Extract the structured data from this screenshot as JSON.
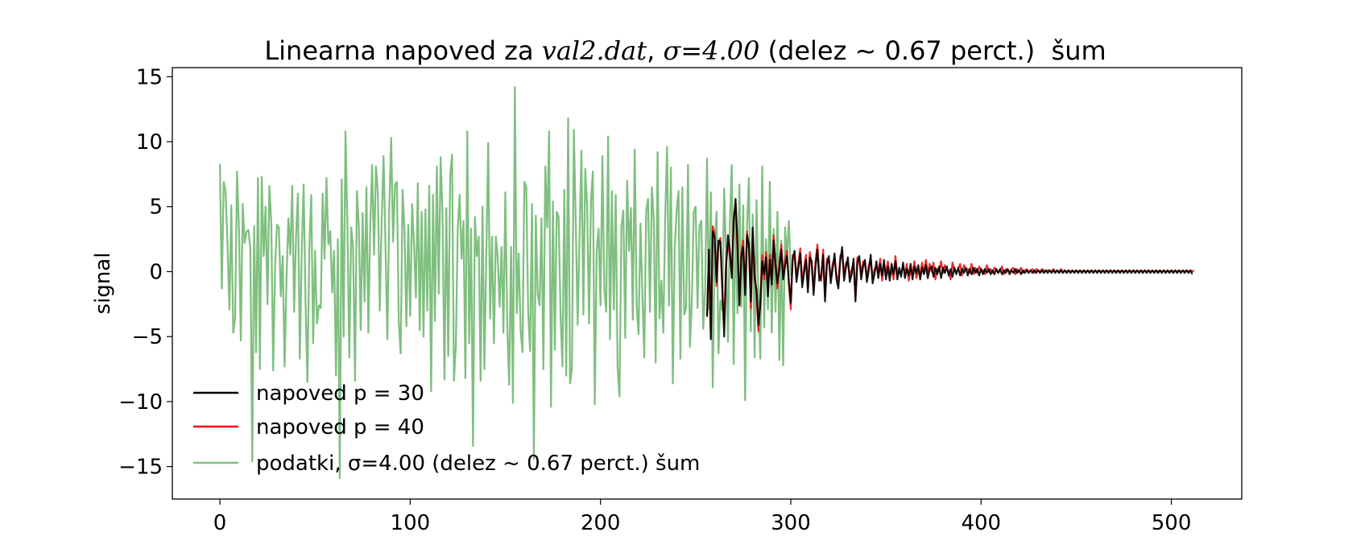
{
  "chart_data": {
    "type": "line",
    "title": {
      "prefix": "Linearna napoved za ",
      "file": "val2.dat",
      "sep": ", ",
      "sigma": "σ=4.00",
      "suffix": " (delez ~ 0.67 perct.)  šum"
    },
    "xlabel": "",
    "ylabel": "signal",
    "xlim": [
      -25,
      537
    ],
    "ylim": [
      -17.5,
      15.7
    ],
    "x_ticks": [
      0,
      100,
      200,
      300,
      400,
      500
    ],
    "y_ticks": [
      15,
      10,
      5,
      0,
      -5,
      -10,
      -15
    ],
    "y_tick_labels": [
      "15",
      "10",
      "5",
      "0",
      "−5",
      "−10",
      "−15"
    ],
    "legend_position": "lower-left",
    "series": [
      {
        "name": "napoved p = 30",
        "color": "#000000",
        "x_start": 256,
        "values": [
          -3.4,
          1.7,
          -5.2,
          3.1,
          2.6,
          -0.8,
          2.4,
          2.3,
          -1.1,
          -5.0,
          0.3,
          2.8,
          1.6,
          -0.5,
          3.8,
          5.6,
          2.2,
          -2.6,
          1.1,
          1.9,
          -1.8,
          2.8,
          2.1,
          -2.3,
          3.4,
          -0.5,
          -1.4,
          -4.1,
          -2.6,
          0.8,
          -0.2,
          1.1,
          -1.9,
          0.9,
          -1.0,
          2.4,
          0.6,
          -0.9,
          0.2,
          1.7,
          -0.6,
          0.4,
          1.2,
          -0.7,
          -2.4,
          0.9,
          1.6,
          -0.8,
          0.3,
          1.4,
          -1.2,
          -0.1,
          0.9,
          -1.6,
          1.1,
          0.8,
          -1.8,
          0.4,
          1.7,
          -0.7,
          -0.3,
          1.3,
          -2.3,
          0.6,
          1.2,
          -0.9,
          0.2,
          1.4,
          -0.6,
          -1.3,
          0.8,
          1.9,
          -0.7,
          0.3,
          1.1,
          -0.8,
          -0.2,
          1.0,
          -2.3,
          0.7,
          1.2,
          -0.6,
          0.4,
          0.9,
          -0.8,
          0.1,
          1.3,
          -0.9,
          -0.2,
          0.8,
          -0.5,
          0.6,
          -0.3,
          0.9,
          -0.6,
          0.4,
          -0.7,
          0.6,
          -0.2,
          0.8,
          -0.6,
          0.3,
          -0.4,
          0.7,
          -0.5,
          0.2,
          -0.3,
          0.6,
          -0.6,
          0.4,
          -0.1,
          0.5,
          -0.6,
          0.3,
          -0.2,
          0.5,
          -0.5,
          0.2,
          0.4,
          -0.4,
          0.3,
          -0.2,
          0.4,
          -0.5,
          0.3,
          -0.1,
          0.4,
          -0.3,
          0.2,
          -0.4,
          0.3,
          -0.2,
          0.3,
          -0.3,
          0.2,
          -0.1,
          0.3,
          -0.3,
          0.2,
          -0.2,
          0.3,
          -0.1,
          0.2,
          -0.3,
          0.2,
          -0.2,
          0.2,
          -0.1,
          0.2,
          -0.2,
          0.1,
          -0.2,
          0.2,
          -0.1,
          0.2,
          -0.2,
          0.1,
          -0.1,
          0.2,
          -0.2,
          0.1,
          -0.1,
          0.2,
          -0.1,
          0.1,
          -0.2,
          0.1,
          -0.1,
          0.1,
          -0.1,
          0.1,
          -0.1,
          0.1,
          -0.1,
          0.1,
          -0.1,
          0.1,
          -0.1,
          0.1,
          -0.1,
          0.1,
          -0.1,
          0.1,
          -0.1,
          0.1,
          -0.1,
          0.1,
          -0.1,
          0.1,
          -0.1,
          0.1,
          -0.1,
          0.1,
          -0.1,
          0.1,
          -0.1,
          0.1,
          -0.1,
          0.1,
          -0.1,
          0.1,
          -0.1,
          0.1,
          -0.1,
          0.1,
          -0.1,
          0.1,
          -0.1,
          0.1,
          -0.1,
          0.1,
          -0.1,
          0.1,
          -0.1,
          0.1,
          -0.1,
          0.1,
          -0.1,
          0.1,
          -0.1,
          0.1,
          -0.1,
          0.1,
          -0.1,
          0.1,
          -0.1,
          0.1,
          -0.1,
          0.1,
          -0.1,
          0.1,
          -0.1,
          0.1,
          -0.1,
          0.1,
          -0.1,
          0.1,
          -0.1,
          0.1,
          -0.1,
          0.1,
          -0.1,
          0.1,
          -0.1,
          0.1,
          -0.1,
          0.1,
          -0.1,
          0.1,
          -0.1,
          0.1,
          -0.1,
          0.1,
          -0.1,
          0.1,
          -0.2
        ]
      },
      {
        "name": "napoved p = 40",
        "color": "#ee1111",
        "x_start": 256,
        "values": [
          -3.5,
          1.4,
          -5.1,
          3.5,
          2.9,
          -1.1,
          2.0,
          2.6,
          -1.5,
          -4.2,
          0.8,
          2.1,
          1.2,
          -0.1,
          4.2,
          5.3,
          1.6,
          -2.1,
          1.5,
          2.4,
          -1.3,
          3.1,
          1.7,
          -2.8,
          3.0,
          -0.1,
          -1.9,
          -4.6,
          -2.1,
          1.3,
          -0.6,
          1.5,
          -1.4,
          1.3,
          -0.5,
          2.8,
          0.2,
          -1.3,
          0.6,
          2.1,
          -0.2,
          0.9,
          1.6,
          -1.1,
          -2.9,
          1.3,
          1.2,
          -0.4,
          0.7,
          1.8,
          -0.8,
          0.3,
          1.3,
          -1.2,
          1.5,
          0.4,
          -1.4,
          0.8,
          2.1,
          -0.3,
          -0.7,
          1.7,
          -1.9,
          1.0,
          0.8,
          -0.5,
          0.6,
          1.0,
          -0.2,
          -0.9,
          1.2,
          1.5,
          -0.3,
          0.7,
          0.7,
          -0.4,
          0.2,
          0.6,
          -1.9,
          1.1,
          0.8,
          -0.2,
          0.8,
          0.5,
          -0.4,
          0.5,
          0.9,
          -0.5,
          0.2,
          0.4,
          -0.1,
          1.0,
          -0.7,
          0.5,
          -0.2,
          0.8,
          -0.3,
          0.2,
          -0.6,
          1.2,
          -0.2,
          -0.1,
          0.0,
          0.3,
          -0.1,
          0.6,
          -0.7,
          0.2,
          -0.2,
          0.8,
          -0.5,
          0.1,
          -0.2,
          0.7,
          -0.1,
          0.9,
          -0.1,
          0.6,
          0.0,
          0.7,
          -0.6,
          0.2,
          0.0,
          0.8,
          -0.1,
          0.5,
          0.1,
          0.0,
          -0.6,
          0.7,
          0.1,
          -0.1,
          0.2,
          0.6,
          -0.3,
          0.5,
          0.1,
          0.2,
          -0.1,
          0.6,
          -0.2,
          0.3,
          -0.1,
          0.4,
          0.1,
          0.1,
          -0.2,
          0.5,
          0.0,
          0.2,
          -0.1,
          0.3,
          0.2,
          -0.1,
          0.1,
          0.4,
          -0.2,
          0.2,
          0.1,
          0.0,
          0.2,
          0.3,
          -0.2,
          0.2,
          0.0,
          0.3,
          -0.1,
          0.1,
          0.2,
          0.0,
          0.1,
          0.2,
          -0.1,
          0.2,
          0.1,
          0.0,
          0.2,
          0.1,
          0.0,
          0.1,
          0.1,
          0.0,
          0.2,
          0.0,
          0.1,
          0.0,
          0.2,
          0.0,
          0.1,
          0.0,
          0.1,
          0.0,
          0.1,
          0.0,
          0.1,
          0.0,
          0.1,
          0.0,
          0.1,
          0.0,
          0.1,
          0.0,
          0.1,
          0.0,
          0.1,
          0.0,
          0.1,
          0.0,
          0.1,
          0.0,
          0.1,
          0.0,
          0.1,
          0.0,
          0.1,
          0.0,
          0.1,
          0.0,
          0.1,
          0.0,
          0.1,
          0.0,
          0.1,
          0.0,
          0.1,
          0.0,
          0.1,
          0.0,
          0.1,
          0.0,
          0.1,
          0.0,
          0.1,
          0.0,
          0.1,
          0.0,
          0.1,
          0.0,
          0.1,
          0.0,
          0.1,
          0.0,
          0.1,
          0.0,
          0.1,
          0.0,
          0.1,
          0.0,
          0.1,
          0.0,
          0.1,
          0.0,
          0.1,
          0.0,
          0.1,
          0.0,
          0.1
        ]
      },
      {
        "name": "podatki, σ=4.00  (delez ~ 0.67 perct.) šum",
        "color": "#7fbf7f",
        "x_start": 0,
        "values": [
          8.3,
          -1.3,
          6.9,
          6.2,
          2.1,
          -2.9,
          5.1,
          -4.7,
          -3.6,
          7.7,
          3.4,
          -5.3,
          5.2,
          2.2,
          3.1,
          3.2,
          1.8,
          -14.6,
          3.5,
          -6.2,
          7.2,
          -7.5,
          7.3,
          1.2,
          5.0,
          -2.5,
          6.6,
          3.8,
          -7.6,
          0.3,
          3.6,
          3.4,
          -1.9,
          1.2,
          -7.3,
          -0.5,
          4.1,
          1.3,
          6.6,
          -3.1,
          2.7,
          6.0,
          -6.7,
          1.5,
          6.7,
          -2.3,
          -8.5,
          1.9,
          5.9,
          -5.5,
          1.6,
          -4.0,
          -2.6,
          -2.8,
          6.0,
          1.0,
          7.2,
          2.1,
          3.1,
          -1.6,
          1.6,
          -8.0,
          2.5,
          -15.9,
          7.1,
          -5.0,
          10.8,
          3.6,
          -6.6,
          3.4,
          1.9,
          -8.4,
          6.2,
          3.5,
          -4.5,
          4.5,
          -2.3,
          6.5,
          -4.7,
          3.5,
          8.2,
          1.3,
          8.1,
          6.1,
          -3.0,
          3.9,
          8.9,
          2.1,
          -5.2,
          4.8,
          10.3,
          2.3,
          6.7,
          6.9,
          -3.9,
          -6.3,
          6.3,
          3.2,
          -4.2,
          3.6,
          -3.4,
          5.2,
          2.1,
          -2.0,
          6.8,
          -4.5,
          4.6,
          -5.0,
          4.8,
          -3.0,
          6.6,
          -9.2,
          5.9,
          -3.8,
          8.1,
          -1.7,
          8.8,
          4.4,
          -8.3,
          4.9,
          -6.5,
          7.4,
          9.0,
          -8.4,
          -5.7,
          3.3,
          5.9,
          1.0,
          3.9,
          -8.2,
          10.8,
          -5.5,
          3.3,
          -13.4,
          4.2,
          1.2,
          2.7,
          -8.4,
          5.0,
          -7.5,
          1.3,
          9.9,
          -3.6,
          2.7,
          -5.5,
          2.7,
          1.1,
          -2.7,
          1.9,
          -4.7,
          6.1,
          -4.1,
          -8.7,
          1.9,
          -10.1,
          14.2,
          -3.2,
          1.4,
          -4.4,
          -6.2,
          6.9,
          6.5,
          -3.1,
          -6.1,
          5.2,
          -14.4,
          4.3,
          -1.7,
          -2.6,
          4.1,
          -7.5,
          8.1,
          3.4,
          10.8,
          -10.4,
          5.4,
          -6.0,
          4.6,
          4.2,
          -3.2,
          -7.3,
          6.3,
          -8.0,
          11.8,
          -8.6,
          -7.4,
          10.9,
          3.9,
          -4.1,
          2.9,
          9.3,
          -3.3,
          7.9,
          5.0,
          -4.0,
          5.5,
          7.7,
          -10.2,
          1.6,
          3.3,
          -2.6,
          8.9,
          -1.3,
          -3.1,
          10.4,
          -5.2,
          6.2,
          -2.9,
          5.9,
          -7.4,
          -9.6,
          3.5,
          4.7,
          -5.1,
          7.0,
          1.6,
          4.9,
          -3.7,
          9.4,
          -2.6,
          -4.8,
          3.7,
          -1.7,
          -6.6,
          4.7,
          5.6,
          -3.1,
          6.5,
          4.0,
          -7.0,
          9.2,
          -3.6,
          -0.7,
          -4.7,
          4.2,
          9.6,
          -2.6,
          8.0,
          -8.6,
          1.8,
          4.7,
          6.2,
          -6.7,
          6.5,
          -3.3,
          -2.8,
          8.2,
          -5.8,
          -2.3,
          4.6,
          5.0,
          -2.8,
          3.5,
          3.9,
          -4.4,
          -1.4,
          8.7,
          -2.9,
          6.1,
          -8.9,
          2.0,
          4.6,
          -6.3,
          -2.2,
          -3.0,
          6.4,
          1.3,
          -5.4,
          3.8,
          8.2,
          -7.1,
          4.1,
          -3.2,
          6.7,
          -2.7,
          5.1,
          -9.9,
          3.6,
          7.2,
          -4.6,
          4.4,
          -6.6,
          5.5,
          -2.1,
          -6.7,
          8.1,
          -4.3,
          2.5,
          -2.9,
          6.9,
          -4.7,
          3.3,
          -3.1,
          4.6,
          -6.8,
          2.4,
          -7.2,
          3.4,
          1.2,
          3.9,
          -0.3
        ]
      }
    ]
  }
}
